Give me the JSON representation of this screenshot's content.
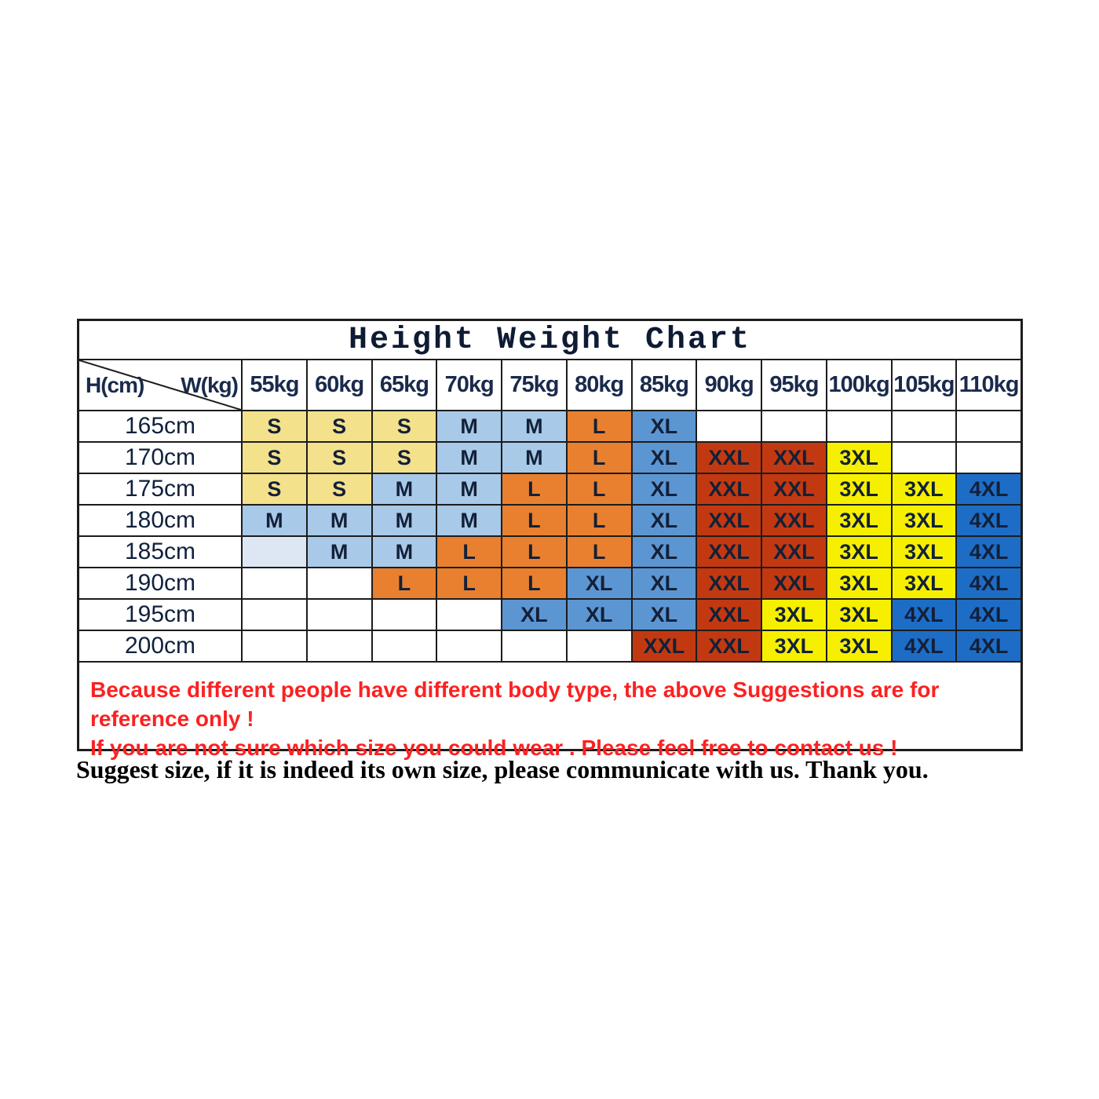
{
  "chart_data": {
    "type": "table",
    "title": "Height Weight Chart",
    "row_header": "H(cm)",
    "col_header": "W(kg)",
    "columns": [
      "55kg",
      "60kg",
      "65kg",
      "70kg",
      "75kg",
      "80kg",
      "85kg",
      "90kg",
      "95kg",
      "100kg",
      "105kg",
      "110kg"
    ],
    "row_labels": [
      "165cm",
      "170cm",
      "175cm",
      "180cm",
      "185cm",
      "190cm",
      "195cm",
      "200cm"
    ],
    "matrix": [
      [
        "S",
        "S",
        "S",
        "M",
        "M",
        "L",
        "XL",
        "",
        "",
        "",
        "",
        ""
      ],
      [
        "S",
        "S",
        "S",
        "M",
        "M",
        "L",
        "XL",
        "XXL",
        "XXL",
        "3XL",
        "",
        ""
      ],
      [
        "S",
        "S",
        "M",
        "M",
        "L",
        "L",
        "XL",
        "XXL",
        "XXL",
        "3XL",
        "3XL",
        "4XL"
      ],
      [
        "M",
        "M",
        "M",
        "M",
        "L",
        "L",
        "XL",
        "XXL",
        "XXL",
        "3XL",
        "3XL",
        "4XL"
      ],
      [
        "",
        "M",
        "M",
        "L",
        "L",
        "L",
        "XL",
        "XXL",
        "XXL",
        "3XL",
        "3XL",
        "4XL"
      ],
      [
        "",
        "",
        "L",
        "L",
        "L",
        "XL",
        "XL",
        "XXL",
        "XXL",
        "3XL",
        "3XL",
        "4XL"
      ],
      [
        "",
        "",
        "",
        "",
        "XL",
        "XL",
        "XL",
        "XXL",
        "3XL",
        "3XL",
        "4XL",
        "4XL"
      ],
      [
        "",
        "",
        "",
        "",
        "",
        "",
        "XXL",
        "XXL",
        "3XL",
        "3XL",
        "4XL",
        "4XL"
      ]
    ],
    "color_matrix": [
      [
        "S",
        "S",
        "S",
        "M",
        "M",
        "L",
        "XL",
        "EMPTY",
        "EMPTY",
        "EMPTY",
        "EMPTY",
        "EMPTY"
      ],
      [
        "S",
        "S",
        "S",
        "M",
        "M",
        "L",
        "XL",
        "XXL",
        "XXL",
        "3XL",
        "EMPTY",
        "EMPTY"
      ],
      [
        "S",
        "S",
        "M",
        "M",
        "L",
        "L",
        "XL",
        "XXL",
        "XXL",
        "3XL",
        "3XL",
        "4XL"
      ],
      [
        "M",
        "M",
        "M",
        "M",
        "L",
        "L",
        "XL",
        "XXL",
        "XXL",
        "3XL",
        "3XL",
        "4XL"
      ],
      [
        "PALE",
        "M",
        "M",
        "L",
        "L",
        "L",
        "XL",
        "XXL",
        "XXL",
        "3XL",
        "3XL",
        "4XL"
      ],
      [
        "EMPTY",
        "EMPTY",
        "L",
        "L",
        "L",
        "XL",
        "XL",
        "XXL",
        "XXL",
        "3XL",
        "3XL",
        "4XL"
      ],
      [
        "EMPTY",
        "EMPTY",
        "EMPTY",
        "EMPTY",
        "XL",
        "XL",
        "XL",
        "XXL",
        "3XL",
        "3XL",
        "4XL",
        "4XL"
      ],
      [
        "EMPTY",
        "EMPTY",
        "EMPTY",
        "EMPTY",
        "EMPTY",
        "EMPTY",
        "XXL",
        "XXL",
        "3XL",
        "3XL",
        "4XL",
        "4XL"
      ]
    ],
    "legend_position": "none",
    "grid": true
  },
  "palette": {
    "S": "#F3E18C",
    "M": "#A8C9E8",
    "L": "#E8802F",
    "XL": "#5C96D2",
    "XXL": "#C23911",
    "3XL": "#F6F000",
    "4XL": "#1D6DC7",
    "PALE": "#DCE7F3",
    "EMPTY": "#FFFFFF",
    "note_red": "#FB2121",
    "border": "#1C1C1C",
    "cell_text": "#132038"
  },
  "notes": [
    "Because different people have different body type, the above Suggestions are for reference only !",
    "If you are not sure which size you could wear . Please feel free to contact us !"
  ],
  "footer": "Suggest size, if it is indeed its own size, please communicate with us. Thank you."
}
